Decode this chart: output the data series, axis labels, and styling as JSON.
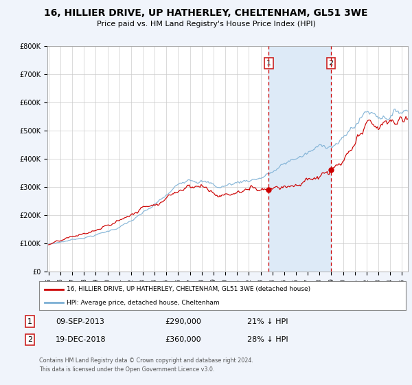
{
  "title": "16, HILLIER DRIVE, UP HATHERLEY, CHELTENHAM, GL51 3WE",
  "subtitle": "Price paid vs. HM Land Registry's House Price Index (HPI)",
  "red_label": "16, HILLIER DRIVE, UP HATHERLEY, CHELTENHAM, GL51 3WE (detached house)",
  "blue_label": "HPI: Average price, detached house, Cheltenham",
  "annotation1": {
    "num": "1",
    "date": "09-SEP-2013",
    "price": "£290,000",
    "pct": "21% ↓ HPI"
  },
  "annotation2": {
    "num": "2",
    "date": "19-DEC-2018",
    "price": "£360,000",
    "pct": "28% ↓ HPI"
  },
  "footnote1": "Contains HM Land Registry data © Crown copyright and database right 2024.",
  "footnote2": "This data is licensed under the Open Government Licence v3.0.",
  "ylim": [
    0,
    800000
  ],
  "xlim_start": 1994.9,
  "xlim_end": 2025.5,
  "bg_color": "#f0f4fb",
  "plot_bg": "#ffffff",
  "red_color": "#cc0000",
  "blue_color": "#7bafd4",
  "shade_color": "#ddeaf7",
  "grid_color": "#cccccc",
  "sale1_year": 2013.69,
  "sale1_price": 290000,
  "sale2_year": 2018.97,
  "sale2_price": 360000
}
